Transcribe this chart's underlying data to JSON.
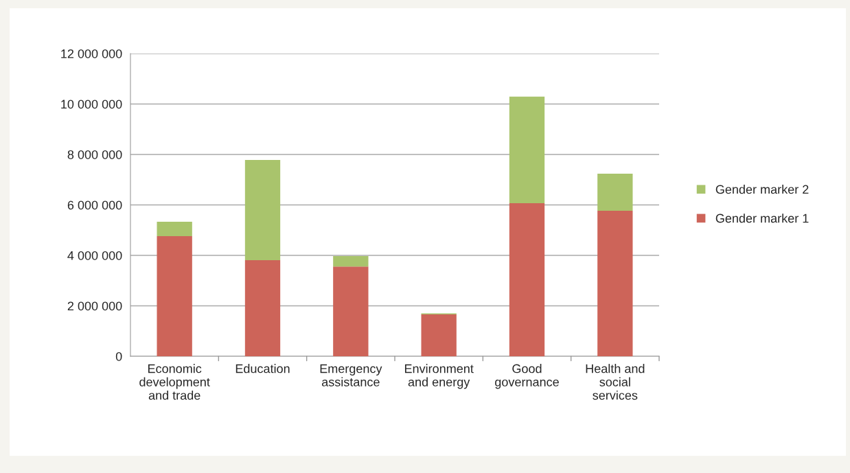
{
  "chart_data": {
    "type": "bar",
    "stacked": true,
    "categories": [
      "Economic\ndevelopment\nand trade",
      "Education",
      "Emergency\nassistance",
      "Environment\nand energy",
      "Good\ngovernance",
      "Health and\nsocial\nservices"
    ],
    "series": [
      {
        "name": "Gender marker 1",
        "color": "#cd6459",
        "values": [
          4760000,
          3810000,
          3560000,
          1660000,
          6070000,
          5770000
        ]
      },
      {
        "name": "Gender marker 2",
        "color": "#a9c46c",
        "values": [
          570000,
          3970000,
          410000,
          40000,
          4220000,
          1470000
        ]
      }
    ],
    "ylim": [
      0,
      12000000
    ],
    "yticks": [
      {
        "value": 0,
        "label": "0"
      },
      {
        "value": 2000000,
        "label": "2 000 000"
      },
      {
        "value": 4000000,
        "label": "4 000 000"
      },
      {
        "value": 6000000,
        "label": "6 000 000"
      },
      {
        "value": 8000000,
        "label": "8 000 000"
      },
      {
        "value": 10000000,
        "label": "10 000 000"
      },
      {
        "value": 12000000,
        "label": "12 000 000"
      }
    ],
    "grid": "y",
    "legend": "right"
  }
}
